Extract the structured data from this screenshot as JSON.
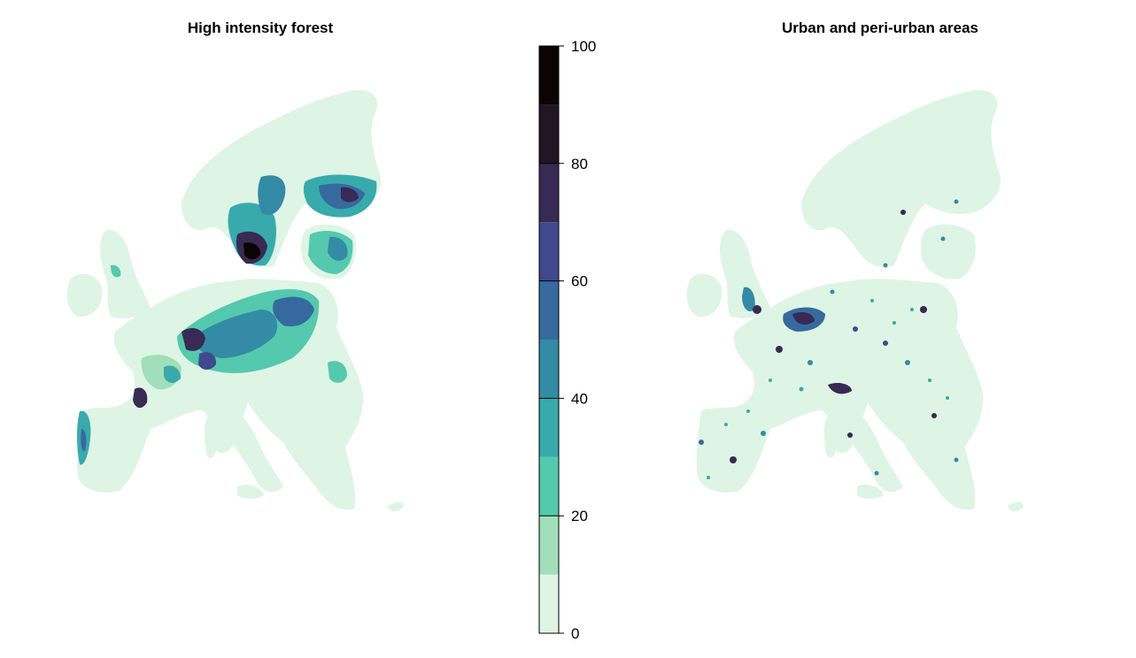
{
  "panels": [
    {
      "title": "High intensity forest"
    },
    {
      "title": "Urban and peri-urban areas"
    }
  ],
  "legend": {
    "min": 0,
    "max": 100,
    "ticks": [
      0,
      20,
      40,
      60,
      80,
      100
    ],
    "bins": [
      {
        "from": 0,
        "to": 10,
        "color": "#def5e5"
      },
      {
        "from": 10,
        "to": 20,
        "color": "#a0dfb9"
      },
      {
        "from": 20,
        "to": 30,
        "color": "#54c9ad"
      },
      {
        "from": 30,
        "to": 40,
        "color": "#38aaac"
      },
      {
        "from": 40,
        "to": 50,
        "color": "#348ba6"
      },
      {
        "from": 50,
        "to": 60,
        "color": "#366a9f"
      },
      {
        "from": 60,
        "to": 70,
        "color": "#40498e"
      },
      {
        "from": 70,
        "to": 80,
        "color": "#382a54"
      },
      {
        "from": 80,
        "to": 90,
        "color": "#231526"
      },
      {
        "from": 90,
        "to": 100,
        "color": "#0b0405"
      }
    ]
  },
  "colors": {
    "land_base": "#def5e5",
    "low": "#a0dfb9",
    "mid": "#38aaac",
    "high": "#366a9f",
    "very_high": "#382a54",
    "max": "#0b0405"
  }
}
